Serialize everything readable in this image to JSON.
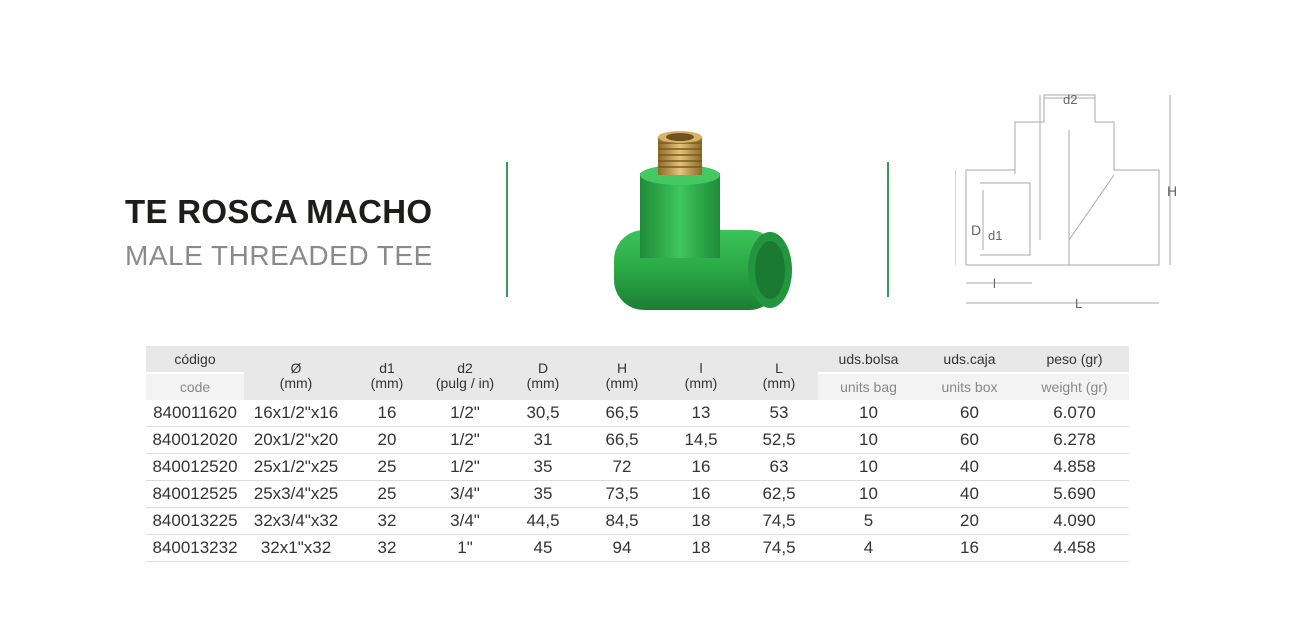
{
  "title": "TE ROSCA MACHO",
  "subtitle": "MALE THREADED TEE",
  "colors": {
    "accent_green": "#3a9a5c",
    "pipe_green": "#2eaa48",
    "brass": "#c49a4a",
    "header_gray": "#e8e8e8"
  },
  "diagram_labels": {
    "d2": "d2",
    "H": "H",
    "D": "D",
    "d1": "d1",
    "l": "l",
    "L": "L"
  },
  "table": {
    "headers": [
      {
        "top": "código",
        "sub": "code"
      },
      {
        "top": "Ø",
        "unit": "(mm)"
      },
      {
        "top": "d1",
        "unit": "(mm)"
      },
      {
        "top": "d2",
        "unit": "(pulg / in)"
      },
      {
        "top": "D",
        "unit": "(mm)"
      },
      {
        "top": "H",
        "unit": "(mm)"
      },
      {
        "top": "l",
        "unit": "(mm)"
      },
      {
        "top": "L",
        "unit": "(mm)"
      },
      {
        "top": "uds.bolsa",
        "sub": "units bag"
      },
      {
        "top": "uds.caja",
        "sub": "units box"
      },
      {
        "top": "peso (gr)",
        "sub": "weight (gr)"
      }
    ],
    "rows": [
      [
        "840011620",
        "16x1/2\"x16",
        "16",
        "1/2\"",
        "30,5",
        "66,5",
        "13",
        "53",
        "10",
        "60",
        "6.070"
      ],
      [
        "840012020",
        "20x1/2\"x20",
        "20",
        "1/2\"",
        "31",
        "66,5",
        "14,5",
        "52,5",
        "10",
        "60",
        "6.278"
      ],
      [
        "840012520",
        "25x1/2\"x25",
        "25",
        "1/2\"",
        "35",
        "72",
        "16",
        "63",
        "10",
        "40",
        "4.858"
      ],
      [
        "840012525",
        "25x3/4\"x25",
        "25",
        "3/4\"",
        "35",
        "73,5",
        "16",
        "62,5",
        "10",
        "40",
        "5.690"
      ],
      [
        "840013225",
        "32x3/4\"x32",
        "32",
        "3/4\"",
        "44,5",
        "84,5",
        "18",
        "74,5",
        "5",
        "20",
        "4.090"
      ],
      [
        "840013232",
        "32x1\"x32",
        "32",
        "1\"",
        "45",
        "94",
        "18",
        "74,5",
        "4",
        "16",
        "4.458"
      ]
    ]
  }
}
